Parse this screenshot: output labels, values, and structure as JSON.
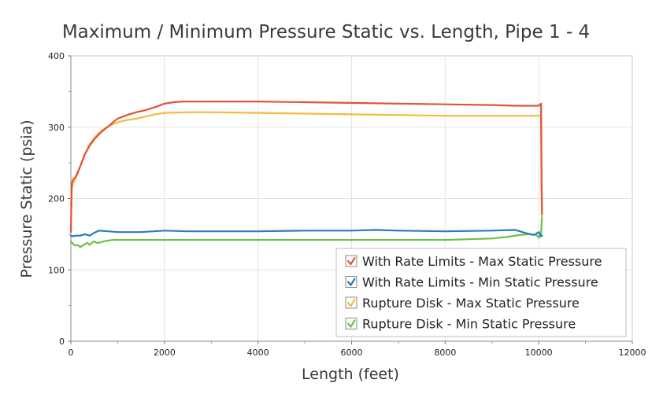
{
  "chart_data": {
    "type": "line",
    "title": "Maximum / Minimum Pressure Static vs. Length, Pipe 1 - 4",
    "xlabel": "Length (feet)",
    "ylabel": "Pressure Static (psia)",
    "xlim": [
      0,
      12000
    ],
    "ylim": [
      0,
      400
    ],
    "xticks": [
      0,
      2000,
      4000,
      6000,
      8000,
      10000,
      12000
    ],
    "yticks": [
      0,
      100,
      200,
      300,
      400
    ],
    "grid": true,
    "legend_position": "bottom-right",
    "series": [
      {
        "name": "With Rate Limits - Max Static Pressure",
        "color": "#e0533a",
        "checked": true,
        "x": [
          0,
          20,
          50,
          100,
          200,
          300,
          400,
          500,
          600,
          700,
          800,
          900,
          1000,
          1200,
          1400,
          1600,
          1800,
          2000,
          2200,
          2400,
          3000,
          4000,
          5000,
          6000,
          7000,
          8000,
          9000,
          9500,
          10000,
          10050,
          10060,
          10070
        ],
        "y": [
          153,
          222,
          227,
          230,
          245,
          262,
          274,
          283,
          290,
          296,
          301,
          307,
          312,
          317,
          321,
          324,
          328,
          333,
          335,
          336,
          336,
          336,
          335,
          334,
          333,
          332,
          331,
          330,
          330,
          333,
          230,
          178
        ]
      },
      {
        "name": "With Rate Limits - Min Static Pressure",
        "color": "#2a7bc0",
        "checked": true,
        "x": [
          0,
          30,
          100,
          200,
          300,
          400,
          500,
          600,
          800,
          1000,
          1500,
          2000,
          2500,
          3000,
          4000,
          5000,
          6000,
          6500,
          7000,
          8000,
          9000,
          9500,
          9700,
          9900,
          10000,
          10050,
          10070
        ],
        "y": [
          148,
          147,
          148,
          148,
          150,
          148,
          152,
          155,
          154,
          153,
          153,
          155,
          154,
          154,
          154,
          155,
          155,
          156,
          155,
          154,
          155,
          156,
          152,
          149,
          153,
          147,
          148
        ]
      },
      {
        "name": "Rupture Disk - Max Static Pressure",
        "color": "#f2bb3a",
        "checked": true,
        "x": [
          0,
          20,
          50,
          100,
          200,
          300,
          400,
          500,
          600,
          700,
          800,
          900,
          1000,
          1200,
          1400,
          1600,
          1800,
          2000,
          2500,
          3000,
          4000,
          5000,
          6000,
          7000,
          8000,
          9000,
          10000,
          10050,
          10060,
          10070
        ],
        "y": [
          190,
          215,
          222,
          228,
          245,
          262,
          276,
          285,
          292,
          297,
          301,
          304,
          307,
          310,
          312,
          315,
          318,
          320,
          321,
          321,
          320,
          319,
          318,
          317,
          316,
          316,
          316,
          316,
          220,
          175
        ]
      },
      {
        "name": "Rupture Disk - Min Static Pressure",
        "color": "#6cc04a",
        "checked": true,
        "x": [
          0,
          50,
          100,
          150,
          200,
          250,
          300,
          350,
          400,
          450,
          500,
          550,
          600,
          700,
          800,
          900,
          1000,
          2000,
          3000,
          4000,
          5000,
          6000,
          7000,
          8000,
          9000,
          9300,
          9600,
          9800,
          9950,
          10000,
          10050,
          10070
        ],
        "y": [
          140,
          136,
          134,
          135,
          132,
          134,
          136,
          138,
          135,
          138,
          140,
          138,
          138,
          140,
          141,
          142,
          142,
          142,
          142,
          142,
          142,
          142,
          142,
          142,
          144,
          146,
          149,
          150,
          149,
          145,
          150,
          175
        ]
      }
    ]
  }
}
